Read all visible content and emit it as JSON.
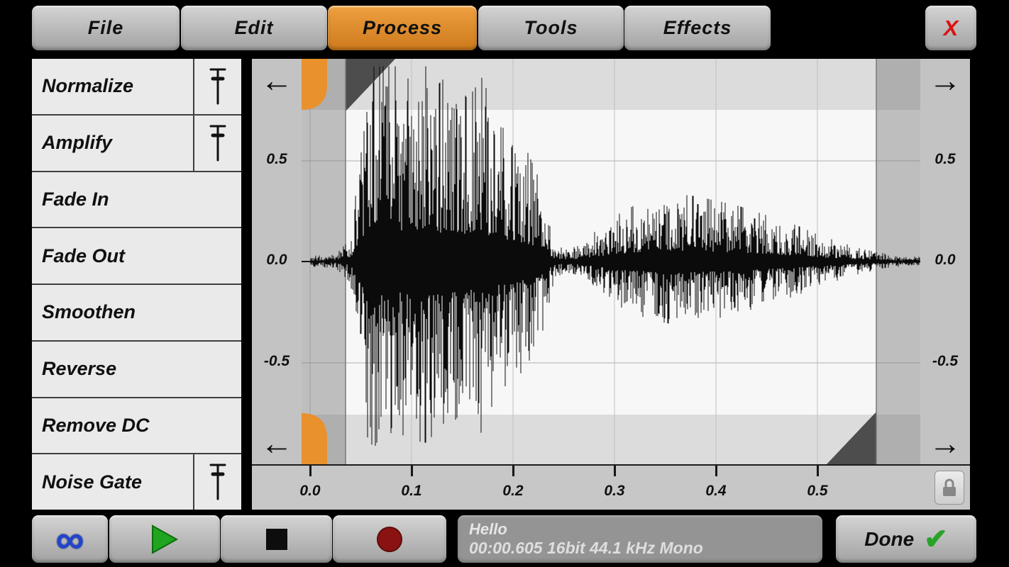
{
  "menu": {
    "items": [
      {
        "label": "File",
        "active": false
      },
      {
        "label": "Edit",
        "active": false
      },
      {
        "label": "Process",
        "active": true
      },
      {
        "label": "Tools",
        "active": false
      },
      {
        "label": "Effects",
        "active": false
      }
    ],
    "close_label": "X"
  },
  "sidebar": {
    "items": [
      {
        "label": "Normalize",
        "slider": true
      },
      {
        "label": "Amplify",
        "slider": true
      },
      {
        "label": "Fade In",
        "slider": false
      },
      {
        "label": "Fade Out",
        "slider": false
      },
      {
        "label": "Smoothen",
        "slider": false
      },
      {
        "label": "Reverse",
        "slider": false
      },
      {
        "label": "Remove DC",
        "slider": false
      },
      {
        "label": "Noise Gate",
        "slider": true
      }
    ]
  },
  "icons": {
    "arrow_left": "←",
    "arrow_right": "→",
    "loop": "∞",
    "check": "✔"
  },
  "waveform_view": {
    "y_axis_ticks": [
      "0.5",
      "0.0",
      "-0.5"
    ],
    "time_ticks": [
      "0.0",
      "0.1",
      "0.2",
      "0.3",
      "0.4",
      "0.5"
    ],
    "selection": {
      "start_time": 0.035,
      "end_time": 0.558
    },
    "envelope": [
      [
        0.0,
        0.025
      ],
      [
        0.025,
        0.03
      ],
      [
        0.04,
        0.1
      ],
      [
        0.05,
        0.6
      ],
      [
        0.06,
        0.95
      ],
      [
        0.08,
        0.9
      ],
      [
        0.095,
        0.8
      ],
      [
        0.11,
        0.92
      ],
      [
        0.125,
        0.78
      ],
      [
        0.14,
        0.85
      ],
      [
        0.155,
        0.72
      ],
      [
        0.17,
        0.82
      ],
      [
        0.185,
        0.6
      ],
      [
        0.2,
        0.58
      ],
      [
        0.215,
        0.48
      ],
      [
        0.23,
        0.32
      ],
      [
        0.24,
        0.1
      ],
      [
        0.25,
        0.05
      ],
      [
        0.265,
        0.07
      ],
      [
        0.28,
        0.13
      ],
      [
        0.3,
        0.2
      ],
      [
        0.32,
        0.25
      ],
      [
        0.34,
        0.28
      ],
      [
        0.36,
        0.3
      ],
      [
        0.38,
        0.29
      ],
      [
        0.4,
        0.27
      ],
      [
        0.42,
        0.25
      ],
      [
        0.44,
        0.22
      ],
      [
        0.46,
        0.19
      ],
      [
        0.48,
        0.16
      ],
      [
        0.5,
        0.12
      ],
      [
        0.52,
        0.09
      ],
      [
        0.54,
        0.06
      ],
      [
        0.56,
        0.04
      ],
      [
        0.58,
        0.025
      ],
      [
        0.604,
        0.02
      ]
    ]
  },
  "transport": {
    "status_title": "Hello",
    "status_info": "00:00.605 16bit 44.1 kHz Mono",
    "done_label": "Done"
  },
  "colors": {
    "accent_orange": "#e0882e",
    "play_green": "#1fa51f",
    "record_red": "#8b1212",
    "loop_blue": "#2244cc",
    "close_red": "#de1111",
    "check_green": "#27a327"
  }
}
